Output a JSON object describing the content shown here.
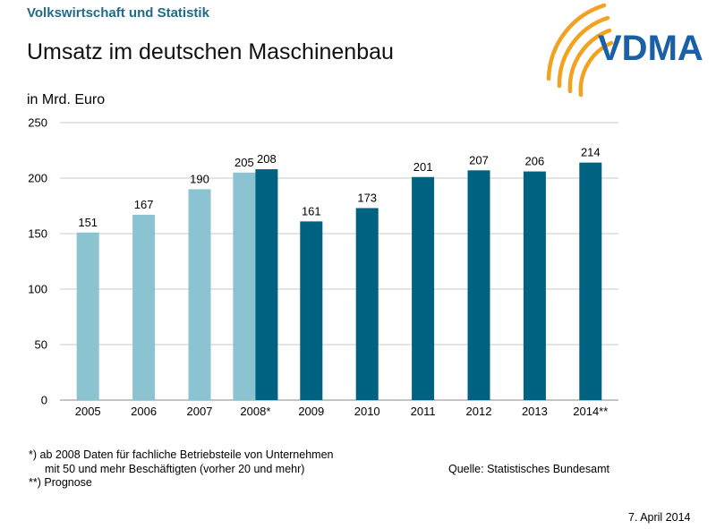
{
  "header": {
    "subtitle": "Volkswirtschaft und Statistik",
    "title": "Umsatz im deutschen Maschinenbau",
    "logo_text": "VDMA"
  },
  "colors": {
    "light_bar": "#8cc3d1",
    "dark_bar": "#006281",
    "logo_blue": "#1b5fa6",
    "logo_orange": "#f2a21f"
  },
  "chart_data": {
    "type": "bar",
    "ylabel": "in Mrd. Euro",
    "ylim": [
      0,
      250
    ],
    "yticks": [
      0,
      50,
      100,
      150,
      200,
      250
    ],
    "grid": true,
    "categories": [
      "2005",
      "2006",
      "2007",
      "2008*",
      "2009",
      "2010",
      "2011",
      "2012",
      "2013",
      "2014**"
    ],
    "bars": [
      {
        "category": "2005",
        "value": 151,
        "style": "light"
      },
      {
        "category": "2006",
        "value": 167,
        "style": "light"
      },
      {
        "category": "2007",
        "value": 190,
        "style": "light"
      },
      {
        "category": "2008*",
        "value": 205,
        "style": "light"
      },
      {
        "category": "2008*",
        "value": 208,
        "style": "dark"
      },
      {
        "category": "2009",
        "value": 161,
        "style": "dark"
      },
      {
        "category": "2010",
        "value": 173,
        "style": "dark"
      },
      {
        "category": "2011",
        "value": 201,
        "style": "dark"
      },
      {
        "category": "2012",
        "value": 207,
        "style": "dark"
      },
      {
        "category": "2013",
        "value": 206,
        "style": "dark"
      },
      {
        "category": "2014**",
        "value": 214,
        "style": "dark"
      }
    ]
  },
  "footnotes": {
    "line1": "*)   ab 2008 Daten für fachliche Betriebsteile von Unternehmen",
    "line2": "mit 50 und mehr Beschäftigten (vorher 20 und mehr)",
    "line3": "**) Prognose"
  },
  "source": "Quelle: Statistisches Bundesamt",
  "date": "7. April 2014"
}
